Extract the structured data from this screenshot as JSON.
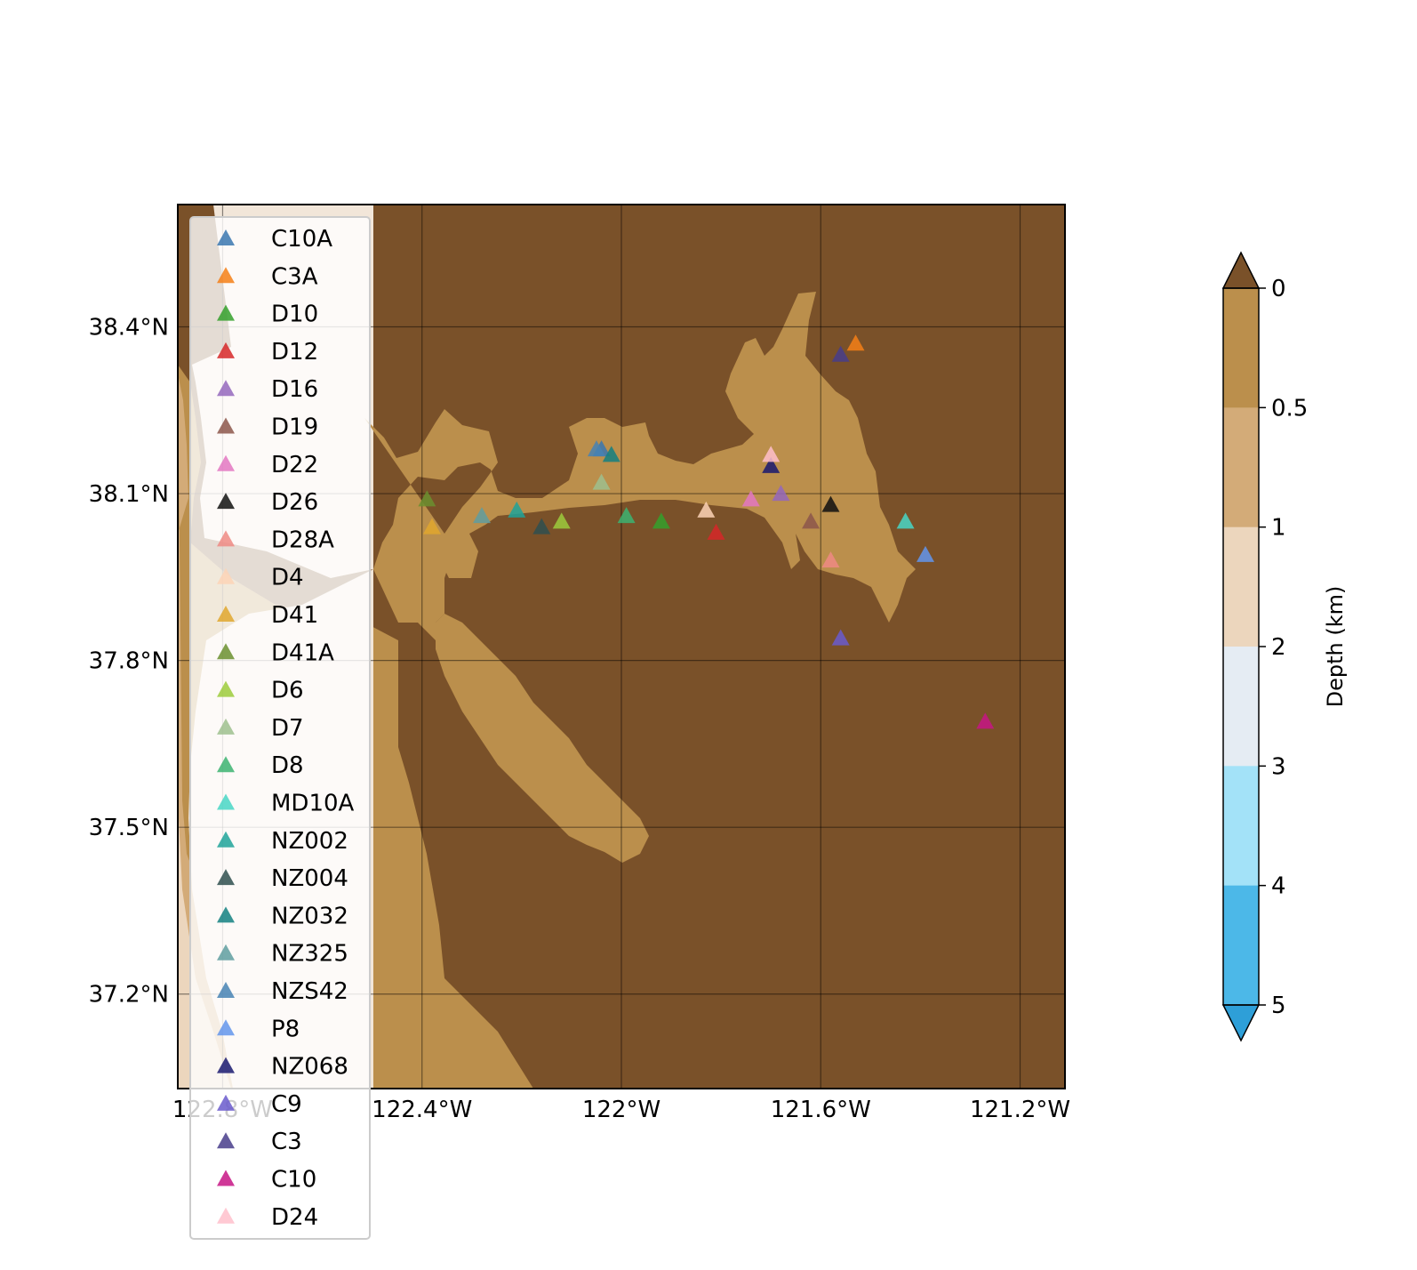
{
  "map": {
    "extent": {
      "lon": [
        -122.89,
        -121.11
      ],
      "lat": [
        37.03,
        38.62
      ]
    },
    "x_ticks": [
      {
        "value": -122.8,
        "label": "122.8°W"
      },
      {
        "value": -122.4,
        "label": "122.4°W"
      },
      {
        "value": -122.0,
        "label": "122°W"
      },
      {
        "value": -121.6,
        "label": "121.6°W"
      },
      {
        "value": -121.2,
        "label": "121.2°W"
      }
    ],
    "y_ticks": [
      {
        "value": 38.4,
        "label": "38.4°N"
      },
      {
        "value": 38.1,
        "label": "38.1°N"
      },
      {
        "value": 37.8,
        "label": "37.8°N"
      },
      {
        "value": 37.5,
        "label": "37.5°N"
      },
      {
        "value": 37.2,
        "label": "37.2°N"
      }
    ],
    "gridlines": true,
    "land_color": "#7a5129",
    "shallow_color": "#bb8f4c"
  },
  "colorbar": {
    "label": "Depth (km)",
    "ticks": [
      "0",
      "0.5",
      "1",
      "2",
      "3",
      "4",
      "5"
    ],
    "colors": [
      "#bb8f4c",
      "#d3ab78",
      "#ecd6bd",
      "#e5ecf3",
      "#a3e2f8",
      "#4cb8e8"
    ],
    "over_color": "#7a5129",
    "under_color": "#2e9fd8",
    "extend": "both"
  },
  "legend": {
    "placement": "upper-left",
    "marker": "triangle"
  },
  "stations": [
    {
      "name": "C10A",
      "lon": -122.04,
      "lat": 38.18,
      "color": "#3a77b0"
    },
    {
      "name": "C3A",
      "lon": -121.53,
      "lat": 38.37,
      "color": "#f47f16"
    },
    {
      "name": "D10",
      "lon": -121.92,
      "lat": 38.05,
      "color": "#34a02c"
    },
    {
      "name": "D12",
      "lon": -121.81,
      "lat": 38.03,
      "color": "#d62728"
    },
    {
      "name": "D16",
      "lon": -121.68,
      "lat": 38.1,
      "color": "#9467bd"
    },
    {
      "name": "D19",
      "lon": -121.62,
      "lat": 38.05,
      "color": "#8c564b"
    },
    {
      "name": "D22",
      "lon": -121.74,
      "lat": 38.09,
      "color": "#e377c2"
    },
    {
      "name": "D26",
      "lon": -121.58,
      "lat": 38.08,
      "color": "#111111"
    },
    {
      "name": "D28A",
      "lon": -121.58,
      "lat": 37.98,
      "color": "#ee8a84"
    },
    {
      "name": "D4",
      "lon": -121.83,
      "lat": 38.07,
      "color": "#fdd4b6"
    },
    {
      "name": "D41",
      "lon": -122.38,
      "lat": 38.04,
      "color": "#e0a72e"
    },
    {
      "name": "D41A",
      "lon": -122.39,
      "lat": 38.09,
      "color": "#6b8f2f"
    },
    {
      "name": "D6",
      "lon": -122.12,
      "lat": 38.05,
      "color": "#9ccb3c"
    },
    {
      "name": "D7",
      "lon": -122.04,
      "lat": 38.12,
      "color": "#9ebf8e"
    },
    {
      "name": "D8",
      "lon": -121.99,
      "lat": 38.06,
      "color": "#3cb371"
    },
    {
      "name": "MD10A",
      "lon": -121.43,
      "lat": 38.05,
      "color": "#48d6c5"
    },
    {
      "name": "NZ002",
      "lon": -122.21,
      "lat": 38.07,
      "color": "#1fa39a"
    },
    {
      "name": "NZ004",
      "lon": -122.16,
      "lat": 38.04,
      "color": "#2f4f4f"
    },
    {
      "name": "NZ032",
      "lon": -122.02,
      "lat": 38.17,
      "color": "#138081"
    },
    {
      "name": "NZ325",
      "lon": -122.28,
      "lat": 38.06,
      "color": "#5f9ea0"
    },
    {
      "name": "NZS42",
      "lon": -122.05,
      "lat": 38.18,
      "color": "#4682b4"
    },
    {
      "name": "P8",
      "lon": -121.39,
      "lat": 37.99,
      "color": "#6395ec"
    },
    {
      "name": "NZ068",
      "lon": -121.7,
      "lat": 38.15,
      "color": "#191970"
    },
    {
      "name": "C9",
      "lon": -121.56,
      "lat": 37.84,
      "color": "#6a5acd"
    },
    {
      "name": "C3",
      "lon": -121.56,
      "lat": 38.35,
      "color": "#483d8b"
    },
    {
      "name": "C10",
      "lon": -121.27,
      "lat": 37.69,
      "color": "#c71585"
    },
    {
      "name": "D24",
      "lon": -121.7,
      "lat": 38.17,
      "color": "#ffc0cb"
    }
  ]
}
